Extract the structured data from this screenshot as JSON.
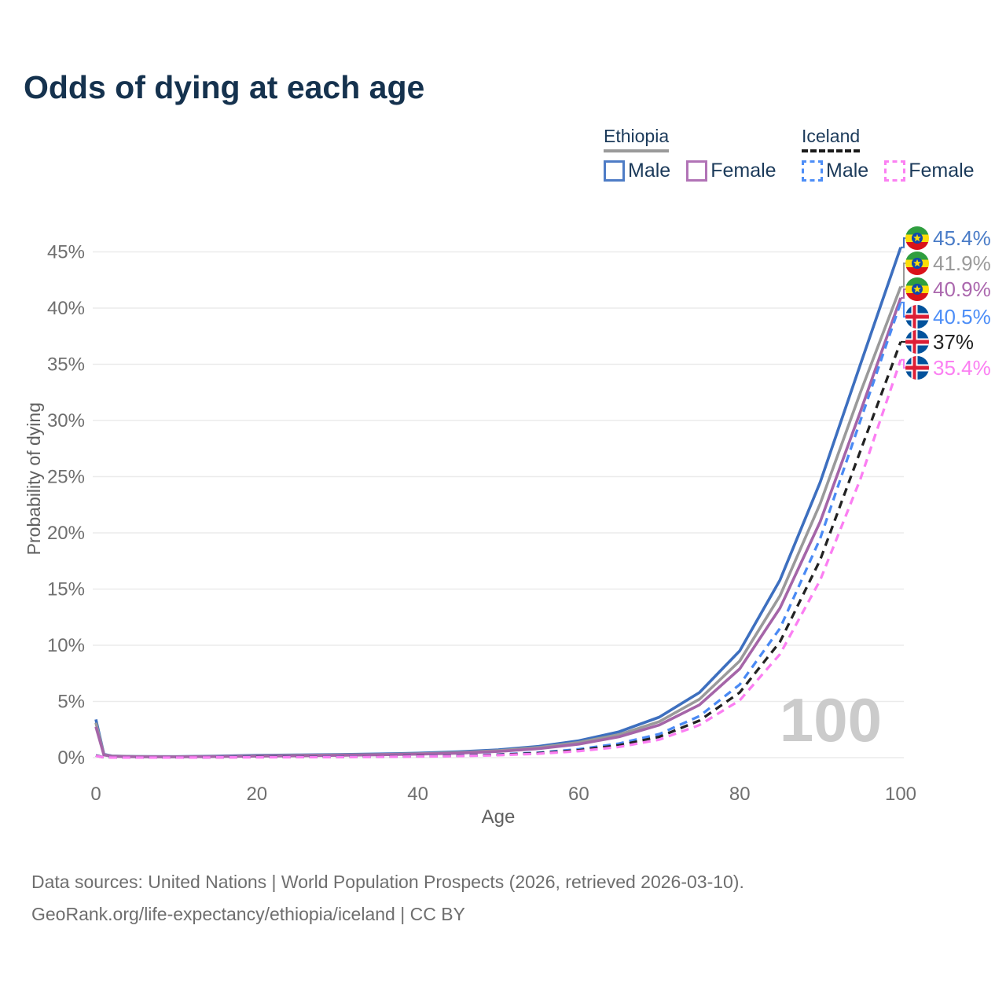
{
  "title": "Odds of dying at each age",
  "watermark_age": "100",
  "legend": {
    "groups": [
      {
        "country": "Ethiopia",
        "line_style": "solid",
        "underline_color": "#9a9a9a",
        "items": [
          {
            "label": "Male",
            "color": "#4e7cc6"
          },
          {
            "label": "Female",
            "color": "#b173b6"
          }
        ]
      },
      {
        "country": "Iceland",
        "line_style": "dashed",
        "underline_color": "#1a1a1a",
        "items": [
          {
            "label": "Male",
            "color": "#4d8ef7"
          },
          {
            "label": "Female",
            "color": "#fb80f2"
          }
        ]
      }
    ]
  },
  "chart_data": {
    "type": "line",
    "title": "Odds of dying at each age",
    "xlabel": "Age",
    "ylabel": "Probability of dying",
    "xlim": [
      0,
      100
    ],
    "ylim": [
      0,
      46
    ],
    "x_ticks": [
      0,
      20,
      40,
      60,
      80,
      100
    ],
    "y_ticks": [
      0,
      5,
      10,
      15,
      20,
      25,
      30,
      35,
      40,
      45
    ],
    "y_tick_suffix": "%",
    "grid": "horizontal",
    "legend_position": "top-right",
    "x": [
      0,
      1,
      2,
      5,
      10,
      15,
      20,
      25,
      30,
      35,
      40,
      45,
      50,
      55,
      60,
      65,
      70,
      75,
      80,
      85,
      90,
      95,
      100
    ],
    "series": [
      {
        "name": "Ethiopia Male",
        "country": "Ethiopia",
        "sex": "Male",
        "color": "#3d6fbf",
        "dash": false,
        "end_label": "45.4%",
        "label_color": "#4a7cc7",
        "values": [
          3.4,
          0.3,
          0.15,
          0.1,
          0.09,
          0.13,
          0.2,
          0.24,
          0.28,
          0.33,
          0.4,
          0.52,
          0.7,
          1.0,
          1.5,
          2.3,
          3.6,
          5.8,
          9.5,
          15.8,
          24.5,
          35.0,
          45.4
        ]
      },
      {
        "name": "Ethiopia",
        "country": "Ethiopia",
        "sex": "Both",
        "color": "#9a9a9a",
        "dash": false,
        "end_label": "41.9%",
        "label_color": "#9a9a9a",
        "values": [
          3.1,
          0.27,
          0.13,
          0.09,
          0.08,
          0.11,
          0.16,
          0.2,
          0.24,
          0.28,
          0.35,
          0.45,
          0.62,
          0.9,
          1.35,
          2.05,
          3.2,
          5.2,
          8.6,
          14.4,
          22.6,
          32.5,
          41.9
        ]
      },
      {
        "name": "Ethiopia Female",
        "country": "Ethiopia",
        "sex": "Female",
        "color": "#a565a8",
        "dash": false,
        "end_label": "40.9%",
        "label_color": "#ab68ae",
        "values": [
          2.75,
          0.24,
          0.12,
          0.08,
          0.07,
          0.1,
          0.13,
          0.16,
          0.2,
          0.25,
          0.31,
          0.4,
          0.55,
          0.8,
          1.2,
          1.85,
          2.9,
          4.7,
          7.9,
          13.3,
          21.0,
          30.8,
          40.9
        ]
      },
      {
        "name": "Iceland Male",
        "country": "Iceland",
        "sex": "Male",
        "color": "#4a8af4",
        "dash": true,
        "end_label": "40.5%",
        "label_color": "#4d8ef7",
        "values": [
          0.2,
          0.02,
          0.01,
          0.01,
          0.01,
          0.04,
          0.07,
          0.08,
          0.09,
          0.1,
          0.13,
          0.18,
          0.28,
          0.45,
          0.75,
          1.25,
          2.1,
          3.7,
          6.5,
          11.5,
          19.5,
          30.0,
          40.5
        ]
      },
      {
        "name": "Iceland",
        "country": "Iceland",
        "sex": "Both",
        "color": "#222222",
        "dash": true,
        "end_label": "37%",
        "label_color": "#222222",
        "values": [
          0.18,
          0.02,
          0.01,
          0.01,
          0.01,
          0.03,
          0.05,
          0.06,
          0.07,
          0.09,
          0.12,
          0.16,
          0.25,
          0.4,
          0.66,
          1.1,
          1.85,
          3.3,
          5.8,
          10.3,
          17.6,
          27.3,
          37.0
        ]
      },
      {
        "name": "Iceland Female",
        "country": "Iceland",
        "sex": "Female",
        "color": "#fb7ef2",
        "dash": true,
        "end_label": "35.4%",
        "label_color": "#fb80f2",
        "values": [
          0.16,
          0.02,
          0.01,
          0.01,
          0.01,
          0.02,
          0.03,
          0.04,
          0.05,
          0.07,
          0.1,
          0.14,
          0.22,
          0.35,
          0.58,
          0.95,
          1.6,
          2.9,
          5.1,
          9.2,
          15.8,
          24.8,
          35.4
        ]
      }
    ]
  },
  "footer": {
    "line1": "Data sources: United Nations | World Population Prospects (2026, retrieved 2026-03-10).",
    "line2": "GeoRank.org/life-expectancy/ethiopia/iceland | CC BY"
  }
}
